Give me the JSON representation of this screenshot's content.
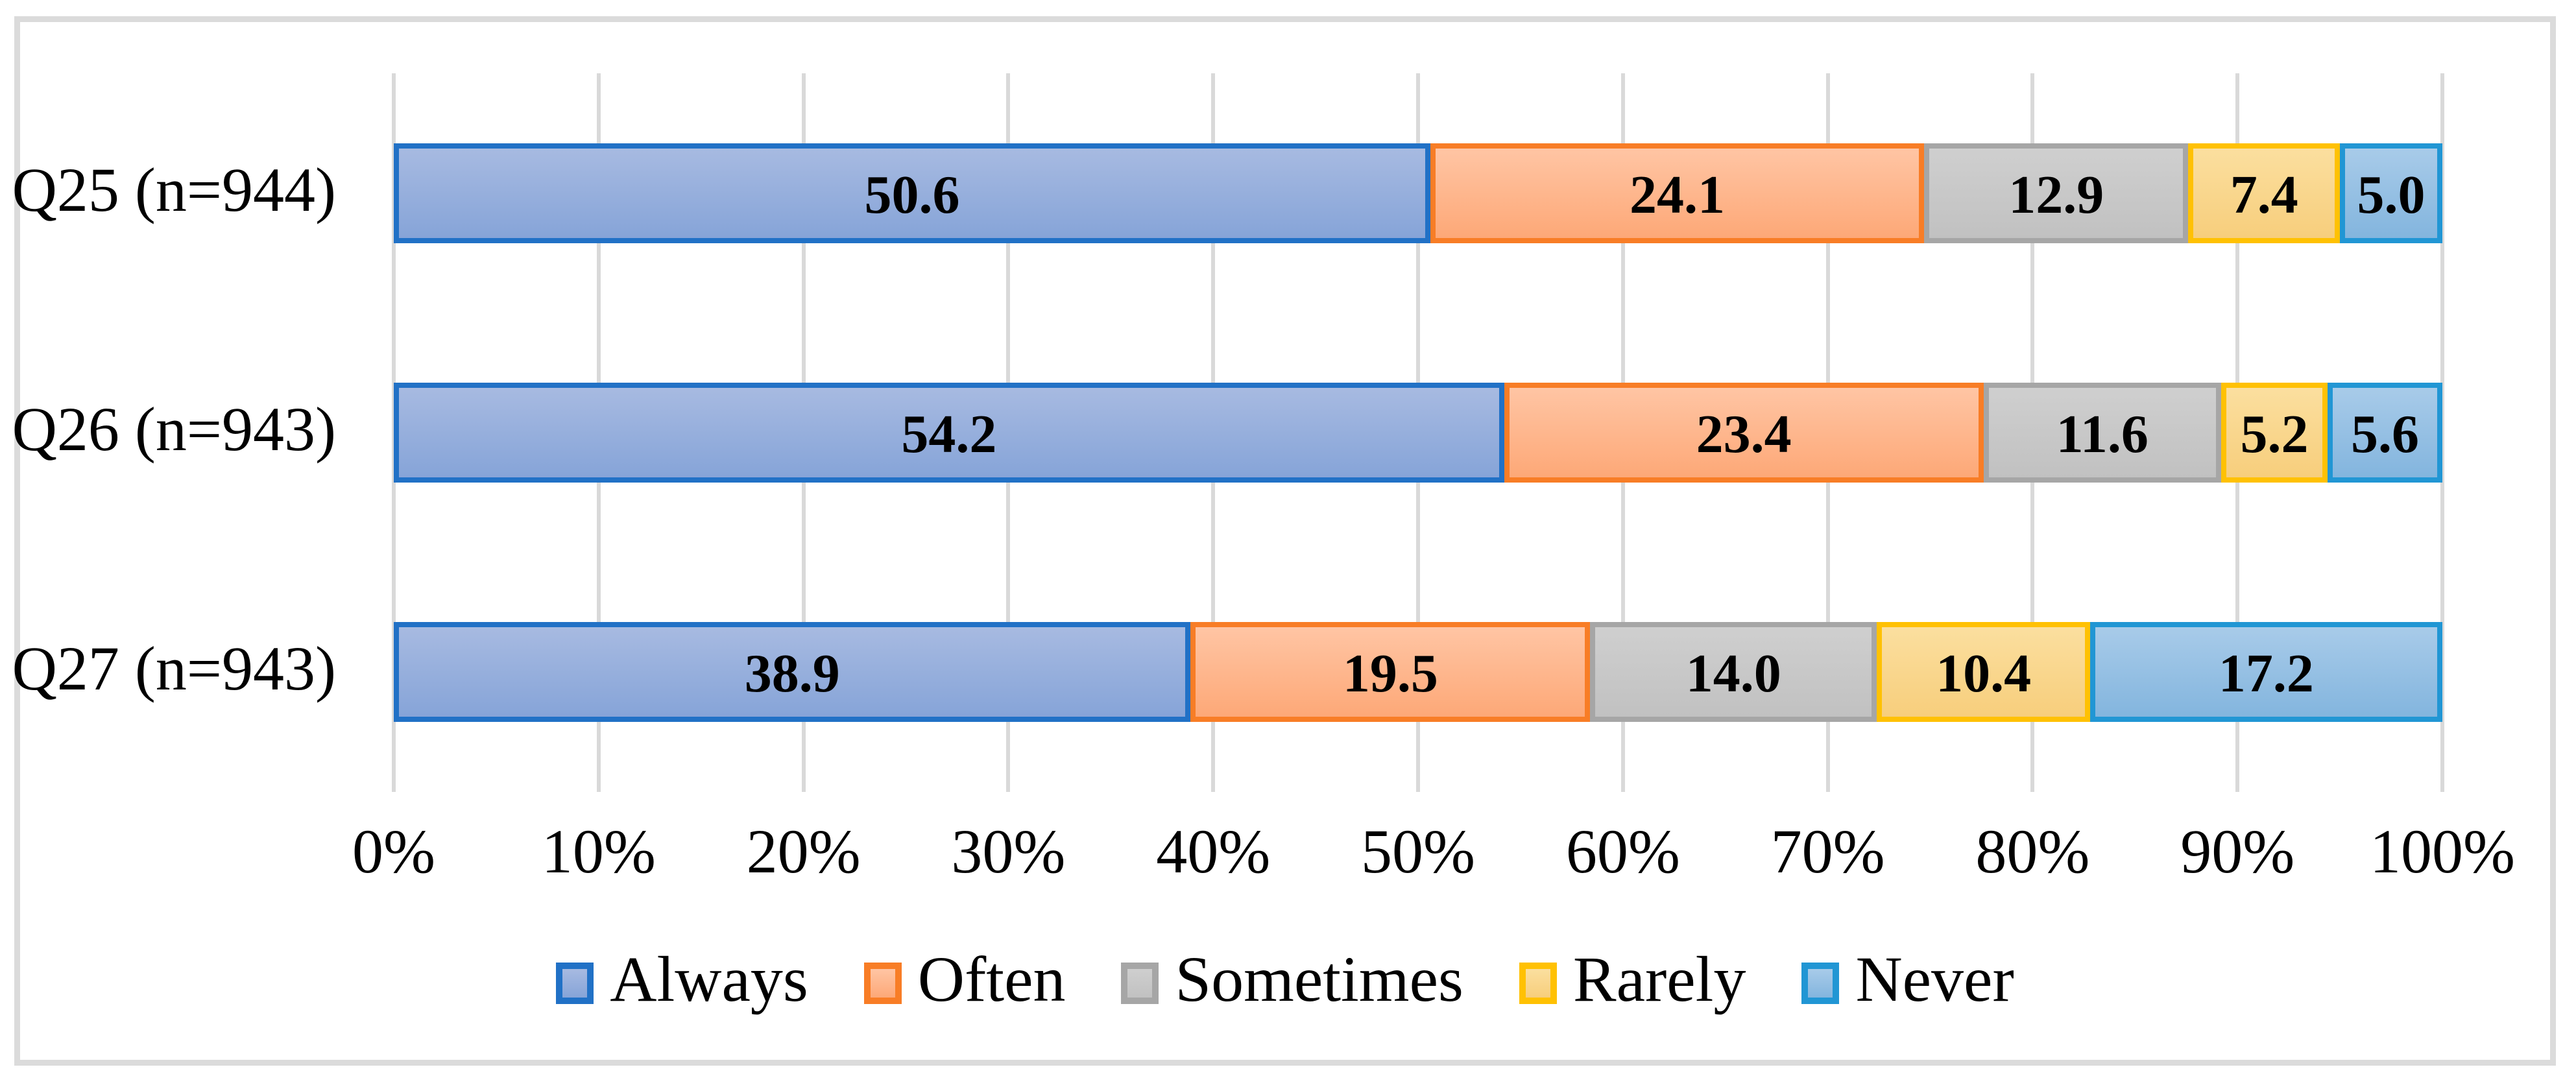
{
  "chart_data": {
    "type": "bar",
    "orientation": "horizontal",
    "stacked": true,
    "title": "",
    "xlabel": "",
    "ylabel": "",
    "categories": [
      "Q25 (n=944)",
      "Q26 (n=943)",
      "Q27 (n=943)"
    ],
    "series": [
      {
        "name": "Always",
        "values": [
          50.6,
          54.2,
          38.9
        ],
        "fill_top": "#A7BAE1",
        "fill_bottom": "#86A4D8",
        "border": "#2171C6"
      },
      {
        "name": "Often",
        "values": [
          24.1,
          23.4,
          19.5
        ],
        "fill_top": "#FFC5A4",
        "fill_bottom": "#FDA877",
        "border": "#F87D26"
      },
      {
        "name": "Sometimes",
        "values": [
          12.9,
          11.6,
          14.0
        ],
        "fill_top": "#CFCFCF",
        "fill_bottom": "#C1C1C1",
        "border": "#A6A6A6"
      },
      {
        "name": "Rarely",
        "values": [
          7.4,
          5.2,
          10.4
        ],
        "fill_top": "#FBDF9F",
        "fill_bottom": "#F7CE7C",
        "border": "#FFC103"
      },
      {
        "name": "Never",
        "values": [
          5.0,
          5.6,
          17.2
        ],
        "fill_top": "#A8CBE9",
        "fill_bottom": "#83B5DE",
        "border": "#2196D4"
      }
    ],
    "value_label_decimals": 1,
    "xlim": [
      0,
      100
    ],
    "x_tick_step": 10,
    "x_ticks": [
      "0%",
      "10%",
      "20%",
      "30%",
      "40%",
      "50%",
      "60%",
      "70%",
      "80%",
      "90%",
      "100%"
    ],
    "grid": "vertical",
    "gridline_color": "#D9D9D9",
    "frame_border_color": "#DBDBDB",
    "legend_position": "bottom",
    "legend": [
      "Always",
      "Often",
      "Sometimes",
      "Rarely",
      "Never"
    ]
  }
}
